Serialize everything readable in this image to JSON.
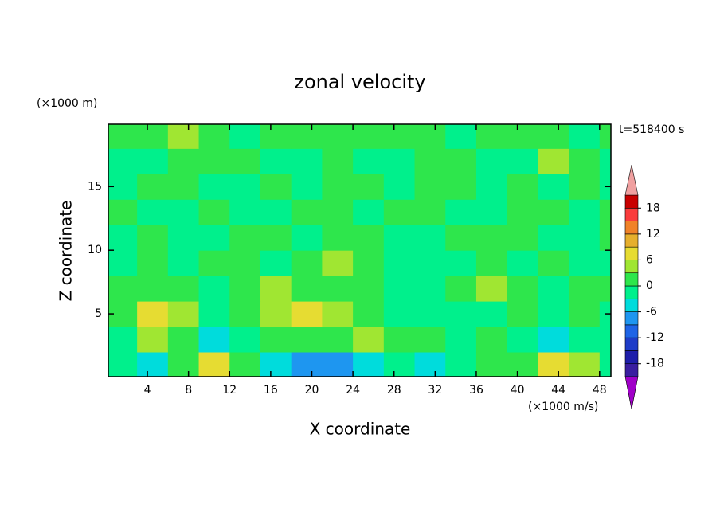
{
  "chart_data": {
    "type": "contour",
    "title": "zonal velocity",
    "y_unit": "(×1000 m)",
    "time_label": "t=518400 s",
    "x_label": "X coordinate",
    "y_label": "Z coordinate",
    "colorbar_unit": "(×1000 m/s)",
    "xlim": [
      0.2,
      49.1
    ],
    "ylim": [
      0.06,
      19.9
    ],
    "xticks": [
      4,
      8,
      12,
      16,
      20,
      24,
      28,
      32,
      36,
      40,
      44,
      48
    ],
    "yticks": [
      5,
      10,
      15
    ],
    "x": [
      1.5,
      4.5,
      7.5,
      10.5,
      13.5,
      16.5,
      19.5,
      22.5,
      25.5,
      28.5,
      31.5,
      34.5,
      37.5,
      40.5,
      43.5,
      46.5,
      49.5
    ],
    "y": [
      1,
      3,
      5,
      7,
      9,
      11,
      13,
      15,
      17,
      19
    ],
    "z": [
      [
        -1.5,
        -4.5,
        1.5,
        7.5,
        1.5,
        -4.5,
        -7.5,
        -7.5,
        -4.5,
        -1.5,
        -4.5,
        -1.5,
        1.5,
        1.5,
        7.5,
        4.5,
        -1.5
      ],
      [
        -1.5,
        4.5,
        1.5,
        -4.5,
        -1.5,
        1.5,
        1.5,
        1.5,
        4.5,
        1.5,
        1.5,
        -1.5,
        1.5,
        -1.5,
        -4.5,
        -1.5,
        -1.5
      ],
      [
        1.5,
        7.5,
        4.5,
        -1.5,
        1.5,
        4.5,
        7.5,
        4.5,
        1.5,
        -1.5,
        -1.5,
        -1.5,
        -1.5,
        1.5,
        -1.5,
        1.5,
        -1.5
      ],
      [
        1.5,
        1.5,
        1.5,
        -1.5,
        1.5,
        4.5,
        1.5,
        1.5,
        1.5,
        -1.5,
        -1.5,
        1.5,
        4.5,
        1.5,
        -1.5,
        1.5,
        1.5
      ],
      [
        -1.5,
        1.5,
        -1.5,
        1.5,
        1.5,
        -1.5,
        1.5,
        4.5,
        1.5,
        -1.5,
        -1.5,
        -1.5,
        1.5,
        -1.5,
        1.5,
        -1.5,
        -1.5
      ],
      [
        -1.5,
        1.5,
        -1.5,
        -1.5,
        1.5,
        1.5,
        -1.5,
        1.5,
        1.5,
        -1.5,
        -1.5,
        1.5,
        1.5,
        1.5,
        -1.5,
        -1.5,
        1.5
      ],
      [
        1.5,
        -1.5,
        -1.5,
        1.5,
        -1.5,
        -1.5,
        1.5,
        1.5,
        -1.5,
        1.5,
        1.5,
        -1.5,
        -1.5,
        1.5,
        1.5,
        -1.5,
        1.5
      ],
      [
        -1.5,
        1.5,
        1.5,
        -1.5,
        -1.5,
        1.5,
        -1.5,
        1.5,
        1.5,
        -1.5,
        1.5,
        1.5,
        -1.5,
        1.5,
        -1.5,
        1.5,
        -1.5
      ],
      [
        -1.5,
        -1.5,
        1.5,
        1.5,
        1.5,
        -1.5,
        -1.5,
        1.5,
        -1.5,
        -1.5,
        1.5,
        1.5,
        -1.5,
        -1.5,
        4.5,
        1.5,
        -1.5
      ],
      [
        1.5,
        1.5,
        4.5,
        1.5,
        -1.5,
        1.5,
        1.5,
        1.5,
        1.5,
        1.5,
        1.5,
        -1.5,
        1.5,
        1.5,
        1.5,
        -1.5,
        1.5
      ]
    ],
    "levels": [
      -21,
      -18,
      -15,
      -12,
      -9,
      -6,
      -3,
      0,
      3,
      6,
      9,
      12,
      15,
      18,
      21
    ],
    "colorbar_ticks": [
      -18,
      -12,
      -6,
      0,
      6,
      12,
      18
    ],
    "colors": [
      "#a000c8",
      "#3a1ea0",
      "#1e1eaa",
      "#1e3cc8",
      "#1e64e6",
      "#1e96f0",
      "#00dcdc",
      "#00f08c",
      "#2ee64c",
      "#a0e632",
      "#e6dc32",
      "#e6af2d",
      "#f08228",
      "#fa3c3c",
      "#c80000",
      "#f0a0a0"
    ]
  }
}
